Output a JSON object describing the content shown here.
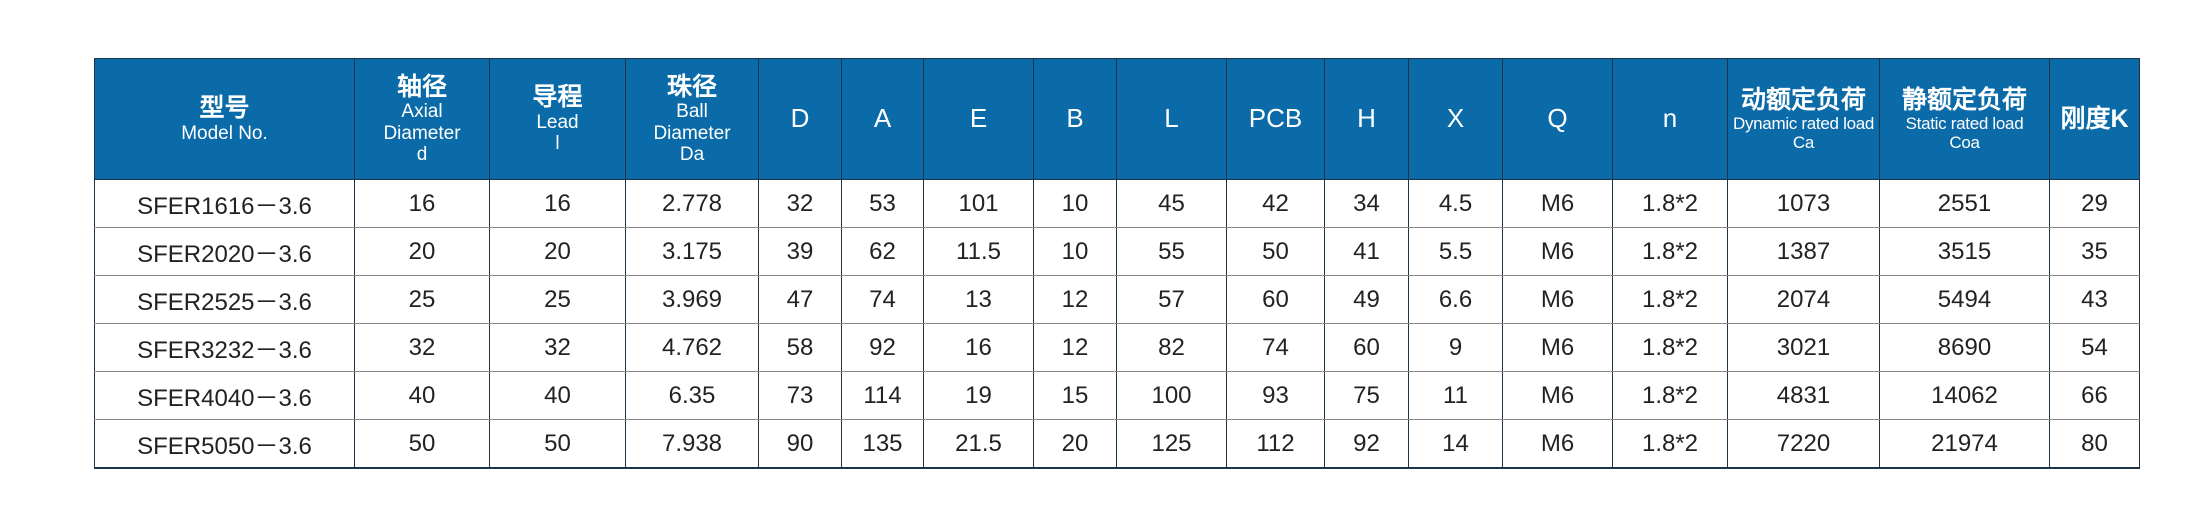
{
  "headers": [
    {
      "cn": "型号",
      "en": [
        "Model No."
      ]
    },
    {
      "cn": "轴径",
      "en": [
        "Axial",
        "Diameter",
        "d"
      ]
    },
    {
      "cn": "导程",
      "en": [
        "Lead",
        "l"
      ]
    },
    {
      "cn": "珠径",
      "en": [
        "Ball",
        "Diameter",
        "Da"
      ]
    },
    {
      "sym": "D"
    },
    {
      "sym": "A"
    },
    {
      "sym": "E"
    },
    {
      "sym": "B"
    },
    {
      "sym": "L"
    },
    {
      "sym": "PCB"
    },
    {
      "sym": "H"
    },
    {
      "sym": "X"
    },
    {
      "sym": "Q"
    },
    {
      "sym": "n"
    },
    {
      "cn": "动额定负荷",
      "en_small": [
        "Dynamic rated load",
        "Ca"
      ]
    },
    {
      "cn": "静额定负荷",
      "en_small": [
        "Static rated  load",
        "Coa"
      ]
    },
    {
      "cn": "刚度K"
    }
  ],
  "rows": [
    [
      "SFER1616－3.6",
      "16",
      "16",
      "2.778",
      "32",
      "53",
      "101",
      "10",
      "45",
      "42",
      "34",
      "4.5",
      "M6",
      "1.8*2",
      "1073",
      "2551",
      "29"
    ],
    [
      "SFER2020－3.6",
      "20",
      "20",
      "3.175",
      "39",
      "62",
      "11.5",
      "10",
      "55",
      "50",
      "41",
      "5.5",
      "M6",
      "1.8*2",
      "1387",
      "3515",
      "35"
    ],
    [
      "SFER2525－3.6",
      "25",
      "25",
      "3.969",
      "47",
      "74",
      "13",
      "12",
      "57",
      "60",
      "49",
      "6.6",
      "M6",
      "1.8*2",
      "2074",
      "5494",
      "43"
    ],
    [
      "SFER3232－3.6",
      "32",
      "32",
      "4.762",
      "58",
      "92",
      "16",
      "12",
      "82",
      "74",
      "60",
      "9",
      "M6",
      "1.8*2",
      "3021",
      "8690",
      "54"
    ],
    [
      "SFER4040－3.6",
      "40",
      "40",
      "6.35",
      "73",
      "114",
      "19",
      "15",
      "100",
      "93",
      "75",
      "11",
      "M6",
      "1.8*2",
      "4831",
      "14062",
      "66"
    ],
    [
      "SFER5050－3.6",
      "50",
      "50",
      "7.938",
      "90",
      "135",
      "21.5",
      "20",
      "125",
      "112",
      "92",
      "14",
      "M6",
      "1.8*2",
      "7220",
      "21974",
      "80"
    ]
  ]
}
